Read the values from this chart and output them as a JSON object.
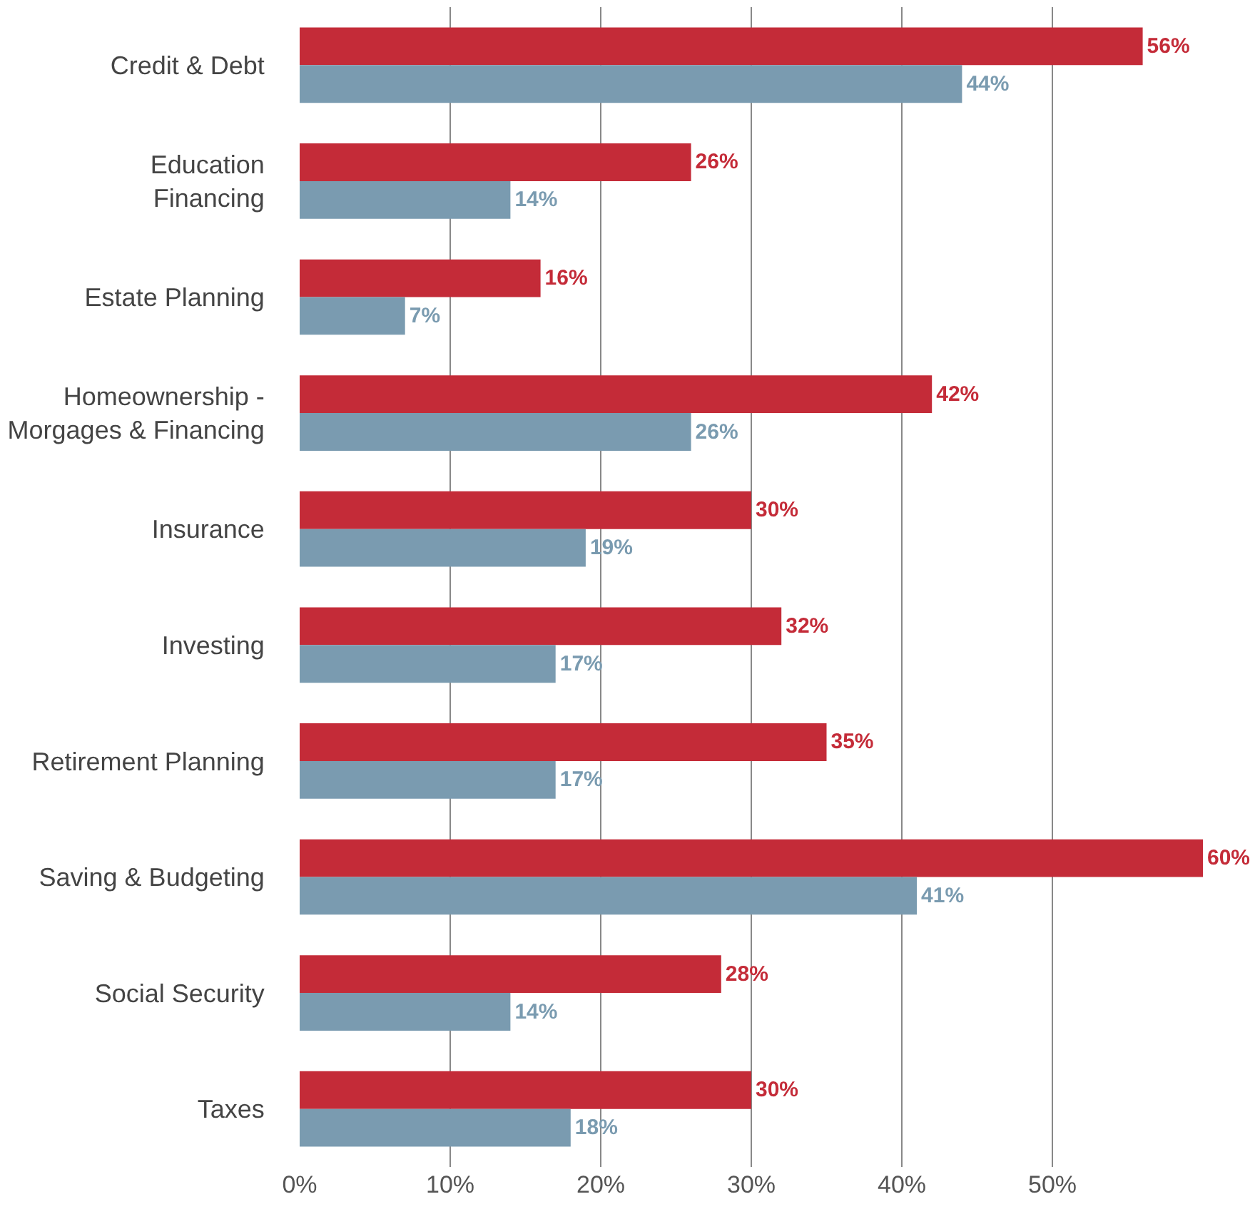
{
  "chart_data": {
    "type": "bar",
    "orientation": "horizontal",
    "categories": [
      "Credit & Debt",
      "Education\nFinancing",
      "Estate Planning",
      "Homeownership -\nMorgages & Financing",
      "Insurance",
      "Investing",
      "Retirement Planning",
      "Saving & Budgeting",
      "Social Security",
      "Taxes"
    ],
    "series": [
      {
        "color": "#c42b38",
        "values": [
          56,
          26,
          16,
          42,
          30,
          32,
          35,
          60,
          28,
          30
        ],
        "value_labels": [
          "56%",
          "26%",
          "16%",
          "42%",
          "30%",
          "32%",
          "35%",
          "60%",
          "28%",
          "30%"
        ]
      },
      {
        "color": "#7a9bb0",
        "values": [
          44,
          14,
          7,
          26,
          19,
          17,
          17,
          41,
          14,
          18
        ],
        "value_labels": [
          "44%",
          "14%",
          "7%",
          "26%",
          "19%",
          "17%",
          "17%",
          "41%",
          "14%",
          "18%"
        ]
      }
    ],
    "xlim": [
      0,
      60
    ],
    "xticks": [
      {
        "value": 0,
        "label": "0%"
      },
      {
        "value": 10,
        "label": "10%"
      },
      {
        "value": 20,
        "label": "20%"
      },
      {
        "value": 30,
        "label": "30%"
      },
      {
        "value": 40,
        "label": "40%"
      },
      {
        "value": 50,
        "label": "50%"
      }
    ],
    "grid": "x"
  }
}
